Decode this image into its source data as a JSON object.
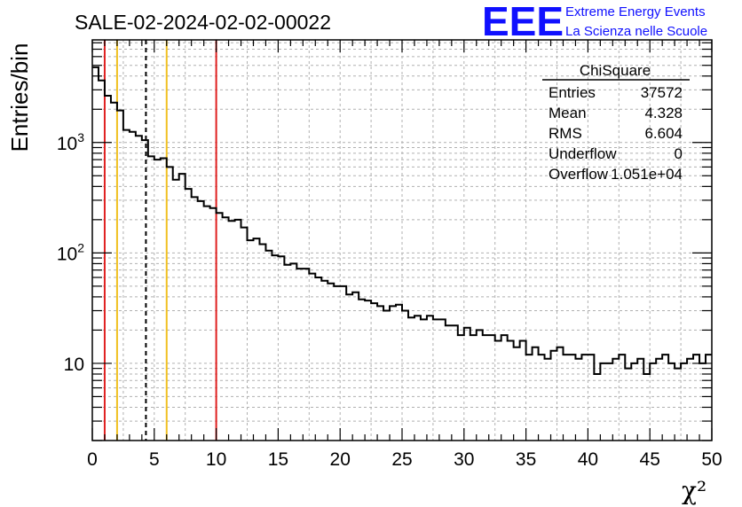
{
  "chart_data": {
    "type": "histogram",
    "title": "SALE-02-2024-02-02-00022",
    "xlabel": "χ²",
    "ylabel": "Entries/bin",
    "xlim": [
      0,
      50
    ],
    "ylim": [
      2,
      8500
    ],
    "yscale": "log",
    "grid": true,
    "bin_width": 0.5,
    "x_ticks": [
      "0",
      "5",
      "10",
      "15",
      "20",
      "25",
      "30",
      "35",
      "40",
      "45",
      "50"
    ],
    "y_ticks": [
      {
        "value": 10,
        "base": "10",
        "exp": ""
      },
      {
        "value": 100,
        "base": "10",
        "exp": "2"
      },
      {
        "value": 1000,
        "base": "10",
        "exp": "3"
      }
    ],
    "values": [
      4800,
      3650,
      2650,
      2300,
      1950,
      1300,
      1250,
      1150,
      1050,
      750,
      700,
      720,
      600,
      460,
      520,
      380,
      320,
      295,
      265,
      255,
      230,
      210,
      195,
      200,
      170,
      130,
      135,
      120,
      105,
      95,
      93,
      78,
      80,
      72,
      72,
      65,
      60,
      56,
      53,
      50,
      50,
      42,
      44,
      38,
      37,
      35,
      33,
      30,
      33,
      34,
      30,
      26,
      27,
      25,
      27,
      25,
      25,
      22,
      22,
      18,
      21,
      18,
      20,
      18,
      18,
      16,
      18,
      16,
      14,
      16,
      12,
      14,
      12,
      11,
      13,
      14,
      12,
      12,
      11,
      12,
      12,
      8,
      10,
      10,
      11,
      12,
      9,
      10,
      11,
      8,
      10,
      11,
      12,
      10,
      9,
      10,
      11,
      12,
      10,
      12
    ],
    "vertical_lines": [
      {
        "x": 1,
        "color": "#e02020",
        "style": "solid"
      },
      {
        "x": 2,
        "color": "#f0c020",
        "style": "solid"
      },
      {
        "x": 4.328,
        "color": "#000000",
        "style": "dashed"
      },
      {
        "x": 6,
        "color": "#f0c020",
        "style": "solid"
      },
      {
        "x": 10,
        "color": "#e02020",
        "style": "solid"
      }
    ],
    "stats_box": {
      "title": "ChiSquare",
      "rows": [
        {
          "label": "Entries",
          "value": "37572"
        },
        {
          "label": "Mean",
          "value": "4.328"
        },
        {
          "label": "RMS",
          "value": "6.604"
        },
        {
          "label": "Underflow",
          "value": "0"
        },
        {
          "label": "Overflow",
          "value": "1.051e+04"
        }
      ]
    }
  },
  "logo": {
    "letters": "EEE",
    "line1": "Extreme Energy Events",
    "line2": "La Scienza nelle Scuole",
    "color": "#1010ff"
  }
}
